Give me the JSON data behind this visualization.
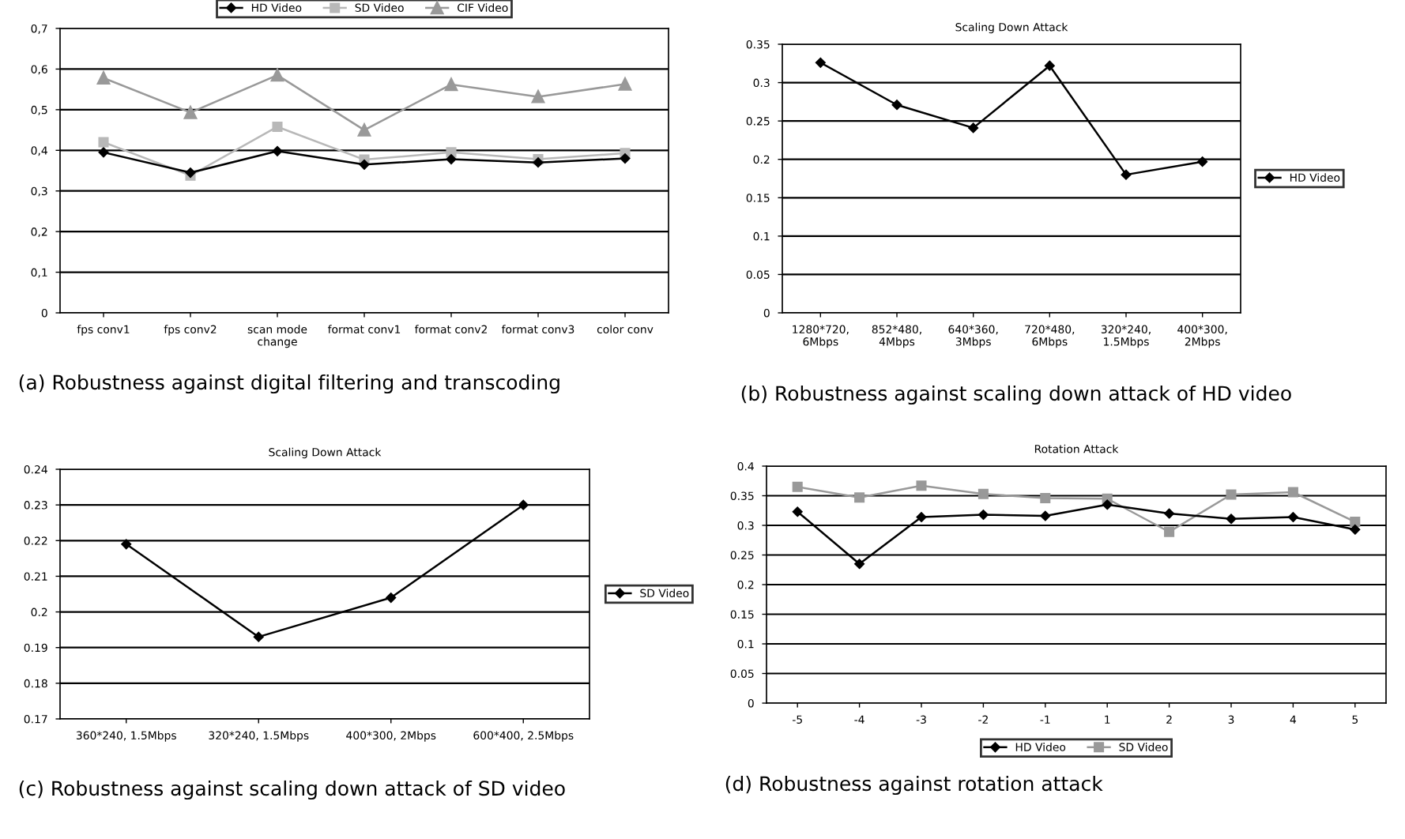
{
  "chart_data": [
    {
      "type": "line",
      "categories": [
        "fps conv1",
        "fps conv2",
        "scan mode\nchange",
        "format conv1",
        "format conv2",
        "format conv3",
        "color conv"
      ],
      "series": [
        {
          "name": "HD Video",
          "color": "#000000",
          "marker": "diamond",
          "values": [
            0.395,
            0.345,
            0.398,
            0.365,
            0.378,
            0.37,
            0.38
          ]
        },
        {
          "name": "SD Video",
          "color": "#b8b8b8",
          "marker": "square",
          "values": [
            0.42,
            0.338,
            0.458,
            0.377,
            0.395,
            0.378,
            0.393
          ]
        },
        {
          "name": "CIF Video",
          "color": "#999999",
          "marker": "triangle",
          "values": [
            0.578,
            0.493,
            0.585,
            0.45,
            0.562,
            0.532,
            0.563
          ]
        }
      ],
      "ylim": [
        0,
        0.7
      ],
      "yticks": [
        {
          "value": 0,
          "label": "0"
        },
        {
          "value": 0.1,
          "label": "0,1"
        },
        {
          "value": 0.2,
          "label": "0,2"
        },
        {
          "value": 0.3,
          "label": "0,3"
        },
        {
          "value": 0.4,
          "label": "0,4"
        },
        {
          "value": 0.5,
          "label": "0,5"
        },
        {
          "value": 0.6,
          "label": "0,6"
        },
        {
          "value": 0.7,
          "label": "0,7"
        }
      ],
      "grid": "y",
      "legend": "top",
      "annotations": [
        "(a) Robustness against digital filtering and transcoding"
      ]
    },
    {
      "type": "line",
      "title": "Scaling Down Attack",
      "categories": [
        "1280*720,\n6Mbps",
        "852*480,\n4Mbps",
        "640*360,\n3Mbps",
        "720*480,\n6Mbps",
        "320*240,\n1.5Mbps",
        "400*300,\n2Mbps"
      ],
      "series": [
        {
          "name": "HD Video",
          "color": "#000000",
          "marker": "diamond",
          "values": [
            0.326,
            0.271,
            0.241,
            0.322,
            0.18,
            0.197
          ]
        }
      ],
      "ylim": [
        0,
        0.35
      ],
      "yticks": [
        0,
        0.05,
        0.1,
        0.15,
        0.2,
        0.25,
        0.3,
        0.35
      ],
      "grid": "y",
      "legend": "right",
      "annotations": [
        "(b) Robustness against scaling down attack of HD video"
      ]
    },
    {
      "type": "line",
      "title": "Scaling Down Attack",
      "categories": [
        "360*240, 1.5Mbps",
        "320*240, 1.5Mbps",
        "400*300, 2Mbps",
        "600*400, 2.5Mbps"
      ],
      "series": [
        {
          "name": "SD Video",
          "color": "#000000",
          "marker": "diamond",
          "values": [
            0.219,
            0.193,
            0.204,
            0.23
          ]
        }
      ],
      "ylim": [
        0.17,
        0.24
      ],
      "yticks": [
        0.17,
        0.18,
        0.19,
        0.2,
        0.21,
        0.22,
        0.23,
        0.24
      ],
      "grid": "y",
      "legend": "right",
      "annotations": [
        "(c) Robustness against scaling down attack of SD video"
      ]
    },
    {
      "type": "line",
      "title": "Rotation Attack",
      "categories": [
        "-5",
        "-4",
        "-3",
        "-2",
        "-1",
        "1",
        "2",
        "3",
        "4",
        "5"
      ],
      "series": [
        {
          "name": "HD Video",
          "color": "#000000",
          "marker": "diamond",
          "values": [
            0.323,
            0.235,
            0.314,
            0.318,
            0.316,
            0.335,
            0.32,
            0.311,
            0.314,
            0.293
          ]
        },
        {
          "name": "SD Video",
          "color": "#999999",
          "marker": "square",
          "values": [
            0.365,
            0.347,
            0.367,
            0.353,
            0.346,
            0.345,
            0.289,
            0.352,
            0.356,
            0.306
          ]
        }
      ],
      "ylim": [
        0,
        0.4
      ],
      "yticks": [
        0,
        0.05,
        0.1,
        0.15,
        0.2,
        0.25,
        0.3,
        0.35,
        0.4
      ],
      "grid": "y",
      "legend": "bottom",
      "annotations": [
        "(d) Robustness against rotation attack"
      ]
    }
  ]
}
